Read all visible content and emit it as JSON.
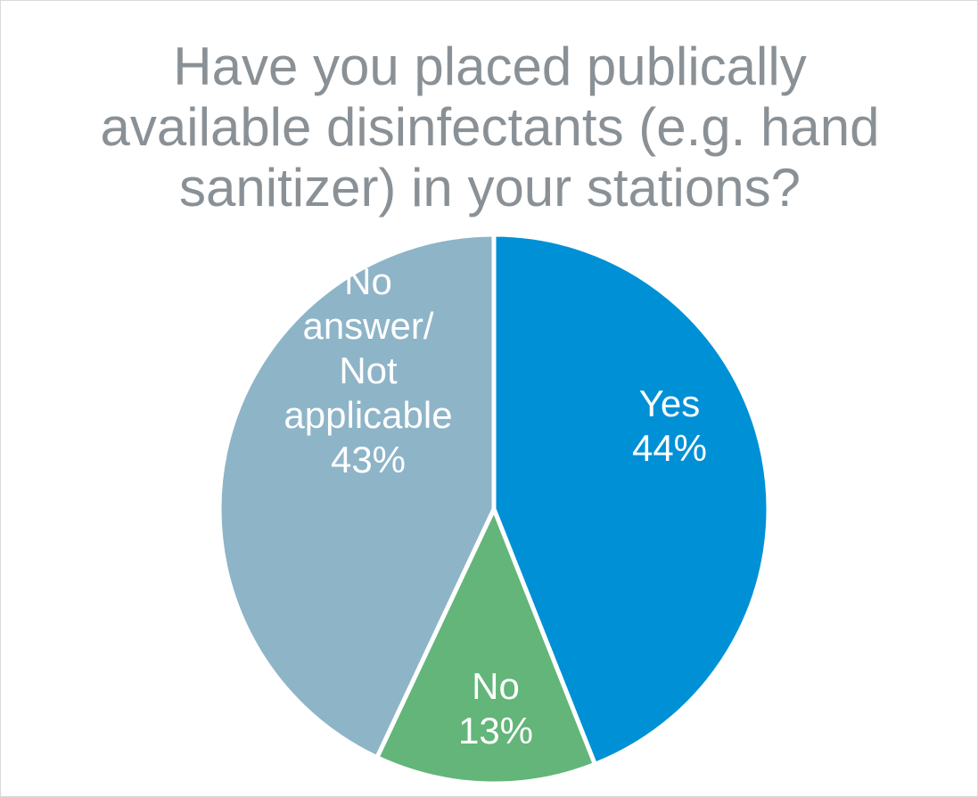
{
  "chart_data": {
    "type": "pie",
    "title_lines": [
      "Have you placed publically",
      "available disinfectants (e.g. hand",
      "sanitizer) in your stations?"
    ],
    "slices": [
      {
        "label_lines": [
          "Yes"
        ],
        "value": 44,
        "value_label": "44%",
        "color": "#0090d6"
      },
      {
        "label_lines": [
          "No"
        ],
        "value": 13,
        "value_label": "13%",
        "color": "#63b579"
      },
      {
        "label_lines": [
          "No",
          "answer/",
          "Not",
          "applicable"
        ],
        "value": 43,
        "value_label": "43%",
        "color": "#8eb4c8"
      }
    ],
    "start_angle_deg": 0,
    "direction": "clockwise",
    "legend": "none"
  },
  "colors": {
    "title": "#8a9196",
    "slice_border": "#ffffff",
    "label_text": "#ffffff"
  }
}
